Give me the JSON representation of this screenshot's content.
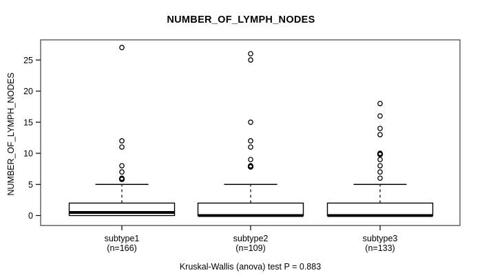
{
  "chart_data": {
    "type": "boxplot",
    "title": "NUMBER_OF_LYMPH_NODES",
    "ylabel": "NUMBER_OF_LYMPH_NODES",
    "xlabel": "",
    "caption": "Kruskal-Wallis (anova) test P = 0.883",
    "p_value": "0.883",
    "yticks": [
      0,
      5,
      10,
      15,
      20,
      25
    ],
    "ylim": [
      -1.7,
      28.3
    ],
    "grid": false,
    "legend": "none",
    "groups": [
      {
        "label": "subtype1",
        "n_label": "(n=166)",
        "n": 166,
        "whisker_low": 0,
        "q1": 0,
        "median": 0.5,
        "q3": 2,
        "whisker_high": 5,
        "outliers": [
          6,
          6,
          7,
          8,
          11,
          12,
          27
        ]
      },
      {
        "label": "subtype2",
        "n_label": "(n=109)",
        "n": 109,
        "whisker_low": 0,
        "q1": 0,
        "median": 0,
        "q3": 2,
        "whisker_high": 5,
        "outliers": [
          8,
          8,
          9,
          11,
          12,
          15,
          25,
          26
        ]
      },
      {
        "label": "subtype3",
        "n_label": "(n=133)",
        "n": 133,
        "whisker_low": 0,
        "q1": 0,
        "median": 0,
        "q3": 2,
        "whisker_high": 5,
        "outliers": [
          6,
          7,
          8,
          9,
          10,
          10,
          13,
          14,
          16,
          18
        ]
      }
    ],
    "colors": {
      "frame": "#3c3c3c",
      "marks": "#000000",
      "text": "#000000",
      "box_fill": "#ffffff",
      "background": "#ffffff"
    }
  }
}
